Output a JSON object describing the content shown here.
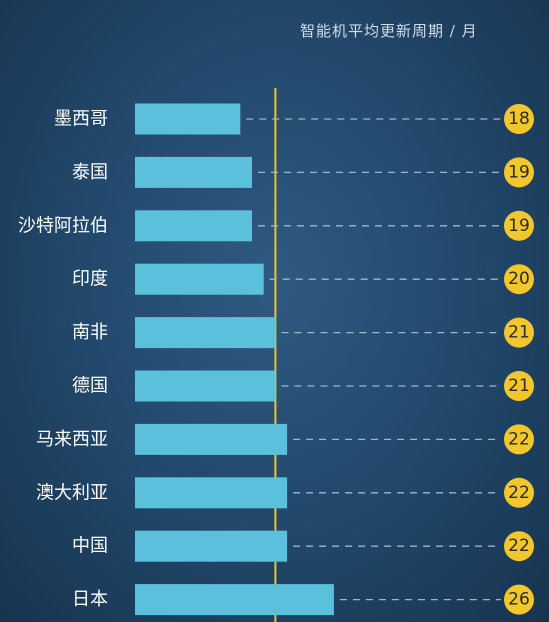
{
  "chart_data": {
    "type": "bar",
    "orientation": "horizontal",
    "title": "智能机平均更新周期 / 月",
    "categories": [
      "墨西哥",
      "泰国",
      "沙特阿拉伯",
      "印度",
      "南非",
      "德国",
      "马来西亚",
      "澳大利亚",
      "中国",
      "日本"
    ],
    "values": [
      18,
      19,
      19,
      20,
      21,
      21,
      22,
      22,
      22,
      26
    ],
    "xlim": [
      9,
      30
    ],
    "reference_line": 21,
    "grid": false,
    "legend": "none"
  },
  "colors": {
    "background": "#234a6e",
    "bar": "#5bc0dc",
    "reference_line": "#e7c335",
    "value_badge": "#f2c62d",
    "connector": "#9fb6c8"
  }
}
